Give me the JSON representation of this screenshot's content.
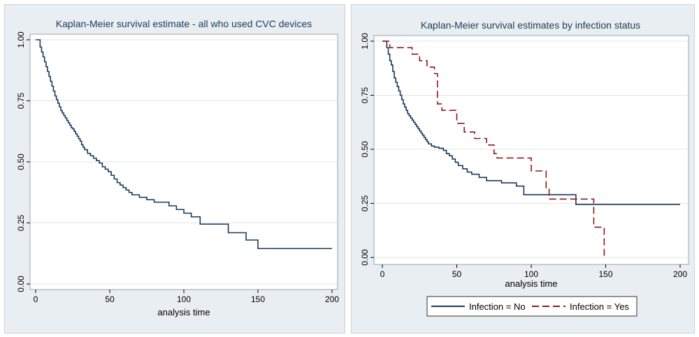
{
  "colors": {
    "background": "#e8eef2",
    "plot_bg": "#ffffff",
    "navy": "#1a3a5c",
    "maroon": "#8b1a1a",
    "grid": "#dfe6ea"
  },
  "chart_data": [
    {
      "type": "line",
      "style": "step",
      "title": "Kaplan-Meier survival estimate - all who used CVC devices",
      "xlabel": "analysis time",
      "ylabel": "",
      "xlim": [
        0,
        200
      ],
      "ylim": [
        0,
        1
      ],
      "xticks": [
        "0",
        "50",
        "100",
        "150",
        "200"
      ],
      "yticks": [
        "0.00",
        "0.25",
        "0.50",
        "0.75",
        "1.00"
      ],
      "grid": true,
      "series": [
        {
          "name": "",
          "color": "#1a3a5c",
          "dash": "",
          "x": [
            0,
            2,
            3,
            4,
            5,
            6,
            7,
            8,
            9,
            10,
            11,
            12,
            13,
            14,
            15,
            16,
            17,
            18,
            19,
            20,
            21,
            22,
            23,
            24,
            25,
            26,
            27,
            28,
            29,
            30,
            31,
            32,
            33,
            35,
            37,
            39,
            41,
            43,
            45,
            47,
            49,
            51,
            53,
            55,
            57,
            59,
            61,
            63,
            65,
            70,
            75,
            80,
            90,
            95,
            100,
            105,
            111,
            115,
            125,
            130,
            135,
            142,
            150,
            160,
            170,
            180,
            190,
            200
          ],
          "y": [
            1.0,
            1.0,
            0.97,
            0.95,
            0.93,
            0.91,
            0.89,
            0.87,
            0.85,
            0.83,
            0.81,
            0.79,
            0.77,
            0.755,
            0.74,
            0.725,
            0.71,
            0.7,
            0.69,
            0.68,
            0.67,
            0.66,
            0.65,
            0.64,
            0.635,
            0.625,
            0.615,
            0.605,
            0.595,
            0.585,
            0.57,
            0.56,
            0.55,
            0.535,
            0.525,
            0.515,
            0.505,
            0.495,
            0.48,
            0.47,
            0.46,
            0.445,
            0.43,
            0.415,
            0.405,
            0.395,
            0.385,
            0.375,
            0.365,
            0.355,
            0.345,
            0.335,
            0.32,
            0.305,
            0.29,
            0.275,
            0.245,
            0.245,
            0.245,
            0.21,
            0.21,
            0.18,
            0.145,
            0.145,
            0.145,
            0.145,
            0.145,
            0.145
          ]
        }
      ]
    },
    {
      "type": "line",
      "style": "step",
      "title": "Kaplan-Meier survival estimates by infection status",
      "xlabel": "analysis time",
      "ylabel": "",
      "xlim": [
        0,
        200
      ],
      "ylim": [
        0,
        1
      ],
      "xticks": [
        "0",
        "50",
        "100",
        "150",
        "200"
      ],
      "yticks": [
        "0.00",
        "0.25",
        "0.50",
        "0.75",
        "1.00"
      ],
      "grid": true,
      "legend_position": "bottom",
      "series": [
        {
          "name": "Infection = No",
          "color": "#1a3a5c",
          "dash": "",
          "x": [
            0,
            3,
            4,
            5,
            6,
            7,
            8,
            9,
            10,
            11,
            12,
            13,
            14,
            15,
            16,
            17,
            18,
            19,
            20,
            21,
            22,
            23,
            24,
            25,
            26,
            27,
            28,
            29,
            30,
            31,
            33,
            35,
            38,
            41,
            43,
            45,
            47,
            49,
            51,
            54,
            57,
            60,
            65,
            70,
            80,
            90,
            95,
            110,
            120,
            130,
            150,
            170,
            190,
            200
          ],
          "y": [
            1.0,
            0.97,
            0.94,
            0.91,
            0.89,
            0.86,
            0.83,
            0.81,
            0.79,
            0.77,
            0.75,
            0.73,
            0.71,
            0.695,
            0.68,
            0.665,
            0.655,
            0.645,
            0.635,
            0.625,
            0.615,
            0.605,
            0.595,
            0.585,
            0.575,
            0.565,
            0.555,
            0.545,
            0.535,
            0.525,
            0.515,
            0.51,
            0.505,
            0.495,
            0.48,
            0.47,
            0.455,
            0.44,
            0.425,
            0.41,
            0.395,
            0.385,
            0.37,
            0.355,
            0.345,
            0.33,
            0.29,
            0.29,
            0.29,
            0.245,
            0.245,
            0.245,
            0.245,
            0.245
          ]
        },
        {
          "name": "Infection = Yes",
          "color": "#8b1a1a",
          "dash": "10,5",
          "x": [
            0,
            5,
            20,
            25,
            30,
            35,
            37,
            40,
            50,
            55,
            62,
            70,
            75,
            77,
            95,
            100,
            110,
            112,
            120,
            130,
            142,
            149
          ],
          "y": [
            1.0,
            0.97,
            0.94,
            0.91,
            0.88,
            0.85,
            0.71,
            0.68,
            0.62,
            0.58,
            0.55,
            0.52,
            0.48,
            0.46,
            0.46,
            0.4,
            0.32,
            0.27,
            0.27,
            0.27,
            0.14,
            0.0
          ]
        }
      ]
    }
  ]
}
